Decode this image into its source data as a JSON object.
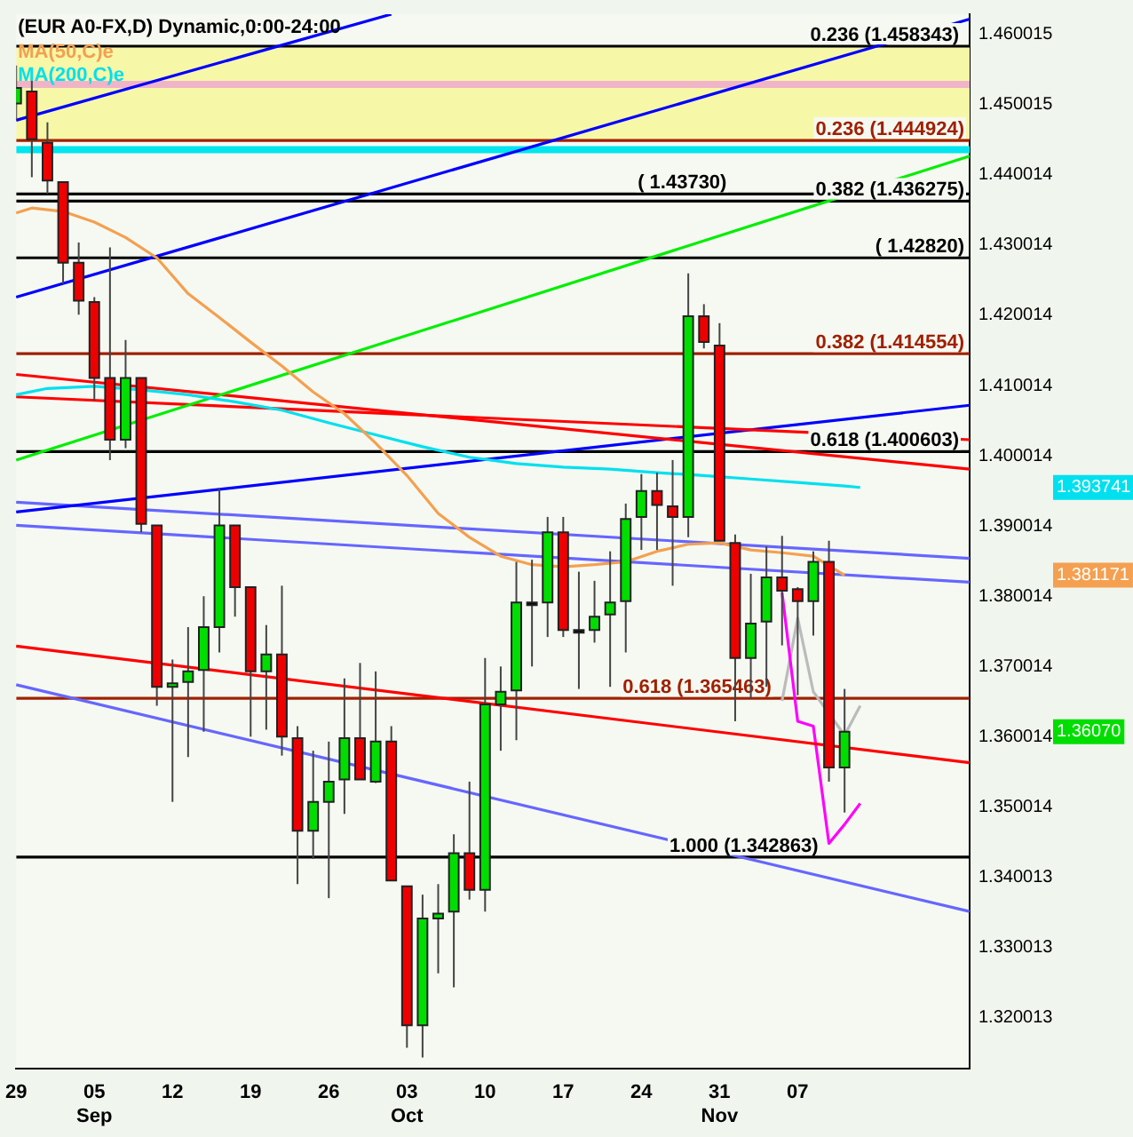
{
  "chart_data": {
    "type": "candlestick",
    "title": "(EUR A0-FX,D) Dynamic,0:00-24:00",
    "legend": "top left",
    "categories": [
      "29",
      null,
      null,
      null,
      null,
      "05\nSep",
      null,
      null,
      null,
      null,
      "12",
      null,
      null,
      null,
      null,
      "19",
      null,
      null,
      null,
      null,
      "26",
      null,
      null,
      null,
      null,
      "03\nOct",
      null,
      null,
      null,
      null,
      "10",
      null,
      null,
      null,
      null,
      "17",
      null,
      null,
      null,
      null,
      "24",
      null,
      null,
      null,
      null,
      "31\nNov",
      null,
      null,
      null,
      null,
      "07",
      null,
      null,
      null,
      null,
      null,
      null,
      null,
      null,
      null,
      null,
      null
    ],
    "ohlc": [
      [
        1.4502,
        1.4556,
        1.4478,
        1.4524
      ],
      [
        1.4519,
        1.4539,
        1.4397,
        1.4451
      ],
      [
        1.4446,
        1.4475,
        1.4373,
        1.4392
      ],
      [
        1.439,
        1.439,
        1.4245,
        1.4275
      ],
      [
        1.4275,
        1.4304,
        1.4201,
        1.4221
      ],
      [
        1.4219,
        1.4226,
        1.4079,
        1.4111
      ],
      [
        1.4111,
        1.4297,
        1.3994,
        1.4023
      ],
      [
        1.4023,
        1.4165,
        1.4011,
        1.4111
      ],
      [
        1.4111,
        1.4111,
        1.3891,
        1.3903
      ],
      [
        1.3901,
        1.3901,
        1.3644,
        1.3671
      ],
      [
        1.3671,
        1.371,
        1.3507,
        1.3676
      ],
      [
        1.3678,
        1.3756,
        1.3571,
        1.3693
      ],
      [
        1.3695,
        1.38,
        1.3607,
        1.3756
      ],
      [
        1.3756,
        1.3954,
        1.372,
        1.3901
      ],
      [
        1.3901,
        1.3901,
        1.3771,
        1.3813
      ],
      [
        1.3813,
        1.3813,
        1.36,
        1.3693
      ],
      [
        1.3693,
        1.3759,
        1.361,
        1.3717
      ],
      [
        1.3717,
        1.3815,
        1.3573,
        1.36
      ],
      [
        1.3598,
        1.3615,
        1.339,
        1.3466
      ],
      [
        1.3466,
        1.358,
        1.3426,
        1.3507
      ],
      [
        1.3507,
        1.3593,
        1.337,
        1.3536
      ],
      [
        1.3539,
        1.3683,
        1.349,
        1.3598
      ],
      [
        1.3598,
        1.3705,
        1.3539,
        1.3539
      ],
      [
        1.3536,
        1.3693,
        1.3534,
        1.3593
      ],
      [
        1.3593,
        1.3615,
        1.3395,
        1.3395
      ],
      [
        1.3387,
        1.3387,
        1.3157,
        1.3189
      ],
      [
        1.3189,
        1.3375,
        1.3143,
        1.3341
      ],
      [
        1.3341,
        1.339,
        1.3263,
        1.3348
      ],
      [
        1.3351,
        1.3461,
        1.3243,
        1.3434
      ],
      [
        1.3434,
        1.3536,
        1.3368,
        1.3382
      ],
      [
        1.3382,
        1.3712,
        1.3351,
        1.3646
      ],
      [
        1.3646,
        1.37,
        1.358,
        1.3664
      ],
      [
        1.3666,
        1.3849,
        1.3595,
        1.3791
      ],
      [
        1.3791,
        1.3852,
        1.37,
        1.3791
      ],
      [
        1.3791,
        1.3913,
        1.3742,
        1.3891
      ],
      [
        1.3891,
        1.3913,
        1.3742,
        1.3752
      ],
      [
        1.3752,
        1.3835,
        1.3668,
        1.3752
      ],
      [
        1.3752,
        1.3822,
        1.3734,
        1.3771
      ],
      [
        1.3774,
        1.3864,
        1.3671,
        1.3791
      ],
      [
        1.3793,
        1.3932,
        1.372,
        1.391
      ],
      [
        1.3913,
        1.3974,
        1.3866,
        1.395
      ],
      [
        1.395,
        1.3976,
        1.3866,
        1.393
      ],
      [
        1.3928,
        1.3994,
        1.3815,
        1.3913
      ],
      [
        1.3913,
        1.426,
        1.3884,
        1.4199
      ],
      [
        1.4199,
        1.4216,
        1.4153,
        1.4162
      ],
      [
        1.4157,
        1.4189,
        1.3879,
        1.3879
      ],
      [
        1.3876,
        1.3888,
        1.3622,
        1.3712
      ],
      [
        1.3712,
        1.3832,
        1.3654,
        1.3761
      ],
      [
        1.3764,
        1.3871,
        1.3671,
        1.3827
      ],
      [
        1.3827,
        1.3886,
        1.373,
        1.3808
      ],
      [
        1.381,
        1.3813,
        1.3659,
        1.3793
      ],
      [
        1.3793,
        1.3864,
        1.3744,
        1.3849
      ],
      [
        1.3849,
        1.3879,
        1.3536,
        1.3556
      ],
      [
        1.3556,
        1.3668,
        1.3492,
        1.3607
      ],
      null,
      null,
      null,
      null,
      null,
      null,
      null,
      null
    ],
    "colors": [
      "#00dd00",
      "#ee0000",
      "#ee0000",
      "#ee0000",
      "#ee0000",
      "#ee0000",
      "#ee0000",
      "#00dd00",
      "#ee0000",
      "#ee0000",
      "#00dd00",
      "#00dd00",
      "#00dd00",
      "#00dd00",
      "#ee0000",
      "#ee0000",
      "#00dd00",
      "#ee0000",
      "#ee0000",
      "#00dd00",
      "#00dd00",
      "#00dd00",
      "#ee0000",
      "#00dd00",
      "#ee0000",
      "#ee0000",
      "#00dd00",
      "#00dd00",
      "#00dd00",
      "#ee0000",
      "#00dd00",
      "#00dd00",
      "#00dd00",
      "#000000",
      "#00dd00",
      "#ee0000",
      "#000000",
      "#00dd00",
      "#00dd00",
      "#00dd00",
      "#00dd00",
      "#ee0000",
      "#ee0000",
      "#00dd00",
      "#ee0000",
      "#ee0000",
      "#ee0000",
      "#00dd00",
      "#00dd00",
      "#ee0000",
      "#ee0000",
      "#00dd00",
      "#ee0000",
      "#00dd00",
      null,
      null,
      null,
      null,
      null,
      null,
      null,
      null
    ],
    "series": [
      {
        "type": "line",
        "name": "MA(50,C)e",
        "color": "#f4a050",
        "values": [
          1.4346,
          1.4353,
          null,
          1.4348,
          null,
          1.4333,
          null,
          1.4311,
          null,
          1.4282,
          null,
          1.4231,
          null,
          1.4197,
          null,
          1.4162,
          null,
          1.4128,
          null,
          1.4091,
          null,
          1.406,
          null,
          1.4018,
          null,
          1.3972,
          null,
          1.3918,
          null,
          1.3884,
          null,
          1.3857,
          null,
          1.3845,
          null,
          1.3842,
          null,
          1.3845,
          null,
          1.3849,
          null,
          1.3864,
          null,
          1.3874,
          null,
          1.3876,
          null,
          1.3866,
          null,
          1.3862,
          null,
          1.3857,
          null,
          1.383,
          null,
          null,
          null,
          null,
          null,
          null,
          null,
          null
        ]
      },
      {
        "type": "line",
        "name": "MA(200,C)e",
        "color": "#00e0ee",
        "values": [
          1.4087,
          null,
          1.4096,
          null,
          null,
          1.4099,
          null,
          null,
          1.4094,
          null,
          null,
          1.4087,
          null,
          null,
          1.4077,
          null,
          null,
          1.4065,
          null,
          null,
          1.4047,
          null,
          null,
          1.403,
          null,
          null,
          1.4013,
          null,
          null,
          1.3998,
          null,
          null,
          1.3989,
          null,
          null,
          1.3984,
          null,
          null,
          1.3981,
          null,
          null,
          1.3976,
          null,
          null,
          1.3972,
          null,
          null,
          1.3967,
          null,
          null,
          1.3962,
          null,
          null,
          1.3957,
          1.3955,
          null,
          null,
          null,
          null,
          null,
          null,
          null
        ]
      },
      {
        "type": "line",
        "color": "#0000ff",
        "values": [
          1.4478,
          null,
          null,
          null,
          null,
          null,
          null,
          null,
          null,
          null,
          null,
          null,
          null,
          null,
          null,
          null,
          null,
          null,
          null,
          null,
          null,
          null,
          null,
          null,
          1.4629,
          null,
          null,
          null,
          null,
          null,
          null,
          null,
          null,
          null,
          null,
          null,
          null,
          null,
          null,
          null,
          null,
          null,
          null,
          null,
          null,
          null,
          null,
          null,
          null,
          null,
          null,
          null,
          null,
          null,
          null,
          null,
          null,
          null,
          null,
          null,
          null,
          null
        ]
      },
      {
        "type": "line",
        "color": "#0000ff",
        "values": [
          1.4226,
          null,
          null,
          null,
          null,
          null,
          null,
          null,
          null,
          null,
          null,
          null,
          null,
          null,
          null,
          null,
          null,
          null,
          null,
          null,
          null,
          null,
          null,
          null,
          null,
          null,
          null,
          null,
          null,
          null,
          null,
          null,
          null,
          null,
          null,
          null,
          null,
          null,
          null,
          null,
          null,
          null,
          null,
          null,
          null,
          null,
          null,
          null,
          null,
          null,
          null,
          null,
          null,
          null,
          null,
          null,
          null,
          null,
          null,
          null,
          null,
          1.4622
        ]
      },
      {
        "type": "line",
        "color": "#00ee00",
        "values": [
          1.3994,
          null,
          null,
          null,
          null,
          null,
          null,
          null,
          null,
          null,
          null,
          null,
          null,
          null,
          null,
          null,
          null,
          null,
          null,
          null,
          null,
          null,
          null,
          null,
          null,
          null,
          null,
          null,
          null,
          null,
          null,
          null,
          null,
          null,
          null,
          null,
          null,
          null,
          null,
          null,
          null,
          null,
          null,
          null,
          null,
          null,
          null,
          null,
          null,
          null,
          null,
          null,
          null,
          null,
          null,
          null,
          null,
          null,
          null,
          null,
          null,
          1.4427
        ]
      },
      {
        "type": "line",
        "color": "#ff0000",
        "values": [
          1.4116,
          null,
          null,
          null,
          null,
          null,
          null,
          null,
          null,
          null,
          null,
          null,
          null,
          null,
          null,
          null,
          null,
          null,
          null,
          null,
          null,
          null,
          null,
          null,
          null,
          null,
          null,
          null,
          null,
          null,
          null,
          null,
          null,
          null,
          null,
          null,
          null,
          null,
          null,
          null,
          null,
          null,
          null,
          null,
          null,
          null,
          null,
          null,
          null,
          null,
          null,
          null,
          null,
          null,
          null,
          null,
          null,
          null,
          null,
          null,
          null,
          1.3981
        ]
      },
      {
        "type": "line",
        "color": "#ff0000",
        "values": [
          1.4084,
          null,
          null,
          null,
          null,
          null,
          null,
          null,
          null,
          null,
          null,
          null,
          null,
          null,
          null,
          null,
          null,
          null,
          null,
          null,
          null,
          null,
          null,
          null,
          null,
          null,
          null,
          null,
          null,
          null,
          null,
          null,
          null,
          null,
          null,
          null,
          null,
          null,
          null,
          null,
          null,
          null,
          null,
          null,
          null,
          null,
          null,
          null,
          null,
          null,
          null,
          null,
          null,
          null,
          null,
          null,
          null,
          null,
          null,
          null,
          null,
          1.4023
        ]
      },
      {
        "type": "line",
        "color": "#0000ff",
        "values": [
          1.392,
          null,
          null,
          null,
          null,
          null,
          null,
          null,
          null,
          null,
          null,
          null,
          null,
          null,
          null,
          null,
          null,
          null,
          null,
          null,
          null,
          null,
          null,
          null,
          null,
          null,
          null,
          null,
          null,
          null,
          null,
          null,
          null,
          null,
          null,
          null,
          null,
          null,
          null,
          null,
          null,
          null,
          null,
          null,
          null,
          null,
          null,
          null,
          null,
          null,
          null,
          null,
          null,
          null,
          null,
          null,
          null,
          null,
          null,
          null,
          null,
          1.4072
        ]
      },
      {
        "type": "line",
        "color": "#6666ff",
        "values": [
          1.3934,
          null,
          null,
          null,
          null,
          null,
          null,
          null,
          null,
          null,
          null,
          null,
          null,
          null,
          null,
          null,
          null,
          null,
          null,
          null,
          null,
          null,
          null,
          null,
          null,
          null,
          null,
          null,
          null,
          null,
          null,
          null,
          null,
          null,
          null,
          null,
          null,
          null,
          null,
          null,
          null,
          null,
          null,
          null,
          null,
          null,
          null,
          null,
          null,
          null,
          null,
          null,
          null,
          null,
          null,
          null,
          null,
          null,
          null,
          null,
          null,
          1.3854
        ]
      },
      {
        "type": "line",
        "color": "#6666ff",
        "values": [
          1.3901,
          null,
          null,
          null,
          null,
          null,
          null,
          null,
          null,
          null,
          null,
          null,
          null,
          null,
          null,
          null,
          null,
          null,
          null,
          null,
          null,
          null,
          null,
          null,
          null,
          null,
          null,
          null,
          null,
          null,
          null,
          null,
          null,
          null,
          null,
          null,
          null,
          null,
          null,
          null,
          null,
          null,
          null,
          null,
          null,
          null,
          null,
          null,
          null,
          null,
          null,
          null,
          null,
          null,
          null,
          null,
          null,
          null,
          null,
          null,
          null,
          1.382
        ]
      },
      {
        "type": "line",
        "color": "#ff0000",
        "values": [
          1.3729,
          null,
          null,
          null,
          null,
          null,
          null,
          null,
          null,
          null,
          null,
          null,
          null,
          null,
          null,
          null,
          null,
          null,
          null,
          null,
          null,
          null,
          null,
          null,
          null,
          null,
          null,
          null,
          null,
          null,
          null,
          null,
          null,
          null,
          null,
          null,
          null,
          null,
          null,
          null,
          null,
          null,
          null,
          null,
          null,
          null,
          null,
          null,
          null,
          null,
          null,
          null,
          null,
          null,
          null,
          null,
          null,
          null,
          null,
          null,
          null,
          1.3563
        ]
      },
      {
        "type": "line",
        "color": "#6666ff",
        "values": [
          1.3674,
          null,
          null,
          null,
          null,
          null,
          null,
          null,
          null,
          null,
          null,
          null,
          null,
          null,
          null,
          null,
          null,
          null,
          null,
          null,
          null,
          null,
          null,
          null,
          null,
          null,
          null,
          null,
          null,
          null,
          null,
          null,
          null,
          null,
          null,
          null,
          null,
          null,
          null,
          null,
          null,
          null,
          null,
          null,
          null,
          null,
          null,
          null,
          null,
          null,
          null,
          null,
          null,
          null,
          null,
          null,
          null,
          null,
          null,
          null,
          null,
          1.3351
        ]
      },
      {
        "type": "line",
        "color": "#ff00ff",
        "values": [
          null,
          null,
          null,
          null,
          null,
          null,
          null,
          null,
          null,
          null,
          null,
          null,
          null,
          null,
          null,
          null,
          null,
          null,
          null,
          null,
          null,
          null,
          null,
          null,
          null,
          null,
          null,
          null,
          null,
          null,
          null,
          null,
          null,
          null,
          null,
          null,
          null,
          null,
          null,
          null,
          null,
          null,
          null,
          null,
          null,
          null,
          null,
          null,
          null,
          1.3805,
          1.3622,
          1.3615,
          1.3448,
          1.3475,
          1.3505,
          null,
          null,
          null,
          null,
          null,
          null,
          null
        ]
      },
      {
        "type": "line",
        "color": "#bbbbbb",
        "values": [
          null,
          null,
          null,
          null,
          null,
          null,
          null,
          null,
          null,
          null,
          null,
          null,
          null,
          null,
          null,
          null,
          null,
          null,
          null,
          null,
          null,
          null,
          null,
          null,
          null,
          null,
          null,
          null,
          null,
          null,
          null,
          null,
          null,
          null,
          null,
          null,
          null,
          null,
          null,
          null,
          null,
          null,
          null,
          null,
          null,
          null,
          null,
          null,
          null,
          1.3651,
          1.3769,
          1.3664,
          null,
          1.3602,
          1.3644,
          null,
          null,
          null,
          null,
          null,
          null,
          null
        ]
      }
    ],
    "bands": [
      {
        "axis": "y",
        "from": 1.444924,
        "to": 1.458343,
        "color": "#f7f7a8"
      }
    ],
    "ref_lines": [
      {
        "axis": "y",
        "value": 1.458343,
        "label": "0.236 (1.458343)",
        "color": "#000000"
      },
      {
        "axis": "y",
        "value": 1.444924,
        "label": "0.236 (1.444924)",
        "color": "#a02000"
      },
      {
        "axis": "y",
        "value": 1.436275,
        "label": "0.382 (1.436275)",
        "color": "#000000"
      },
      {
        "axis": "y",
        "value": 1.4373,
        "label": "( 1.43730)",
        "color": "#000000"
      },
      {
        "axis": "y",
        "value": 1.4282,
        "label": "( 1.42820)",
        "color": "#000000"
      },
      {
        "axis": "y",
        "value": 1.414554,
        "label": "0.382 (1.414554)",
        "color": "#a02000"
      },
      {
        "axis": "y",
        "value": 1.400603,
        "label": "0.618 (1.400603)",
        "color": "#000000"
      },
      {
        "axis": "y",
        "value": 1.365463,
        "label": "0.618 (1.365463)",
        "color": "#a02000"
      },
      {
        "axis": "y",
        "value": 1.342863,
        "label": "1.000 (1.342863)",
        "color": "#000000"
      },
      {
        "axis": "y",
        "value": 1.4529,
        "color": "#f0b4c8"
      },
      {
        "axis": "y",
        "value": 1.4436,
        "color": "#00e5ee"
      }
    ],
    "annotations": [
      "1.381171",
      "1.393741",
      "1.36070"
    ],
    "ylim": [
      1.3127,
      1.4629
    ],
    "yticks": [
      1.320013,
      1.330013,
      1.340013,
      1.350014,
      1.360014,
      1.370014,
      1.380014,
      1.390014,
      1.400014,
      1.410014,
      1.420014,
      1.430014,
      1.440014,
      1.450015,
      1.460015
    ]
  }
}
